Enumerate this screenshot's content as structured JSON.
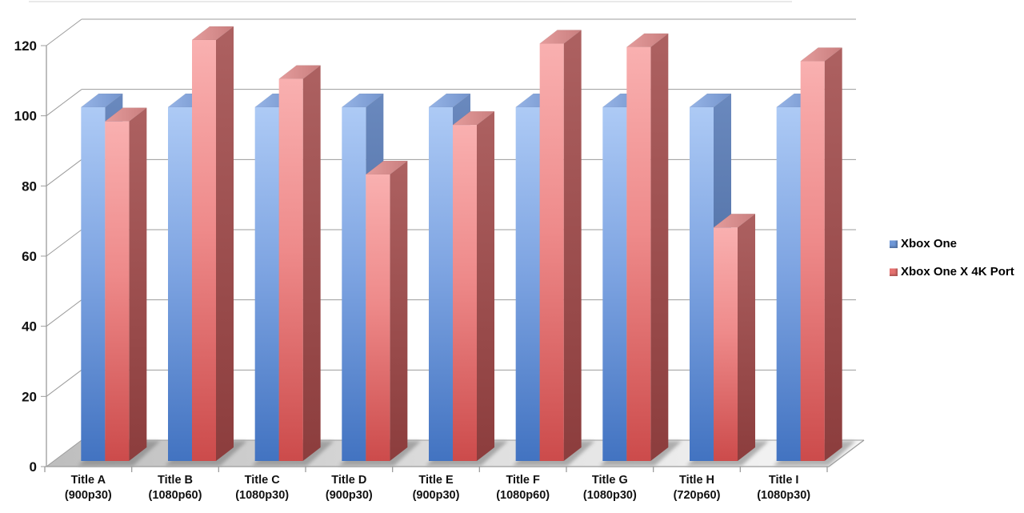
{
  "chart_data": {
    "type": "bar",
    "projection": "3d",
    "title": "",
    "xlabel": "",
    "ylabel": "",
    "ylim": [
      0,
      120
    ],
    "ytick_step": 20,
    "yticks": [
      0,
      20,
      40,
      60,
      80,
      100,
      120
    ],
    "grid": true,
    "legend_position": "right",
    "background_color": "#ffffff",
    "grid_color": "#9c9c9c",
    "categories": [
      {
        "label": "Title A",
        "sublabel": "(900p30)"
      },
      {
        "label": "Title B",
        "sublabel": "(1080p60)"
      },
      {
        "label": "Title C",
        "sublabel": "(1080p30)"
      },
      {
        "label": "Title D",
        "sublabel": "(900p30)"
      },
      {
        "label": "Title E",
        "sublabel": "(900p30)"
      },
      {
        "label": "Title F",
        "sublabel": "(1080p60)"
      },
      {
        "label": "Title G",
        "sublabel": "(1080p30)"
      },
      {
        "label": "Title H",
        "sublabel": "(720p60)"
      },
      {
        "label": "Title I",
        "sublabel": "(1080p30)"
      }
    ],
    "series": [
      {
        "name": "Xbox One",
        "color": "#6e97d7",
        "values": [
          100,
          100,
          100,
          100,
          100,
          100,
          100,
          100,
          100
        ]
      },
      {
        "name": "Xbox One X 4K Port",
        "color": "#e5716f",
        "values": [
          96,
          119,
          108,
          81,
          95,
          118,
          117,
          66,
          113
        ]
      }
    ]
  }
}
